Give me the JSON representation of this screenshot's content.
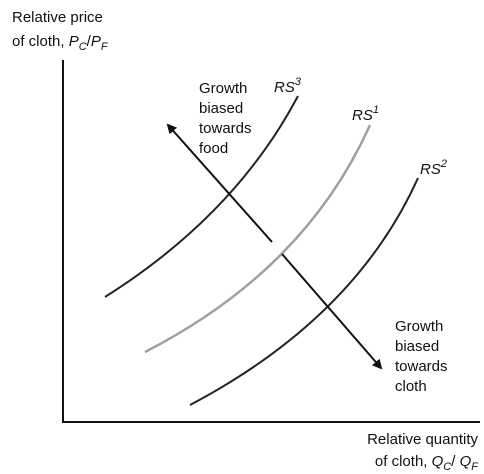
{
  "y_axis_label": {
    "line1": "Relative price",
    "line2": "of cloth, ",
    "var1": "P",
    "sub1": "C",
    "slash": "/",
    "var2": "P",
    "sub2": "F"
  },
  "x_axis_label": {
    "line1": "Relative quantity",
    "line2": "of cloth, ",
    "var1": "Q",
    "sub1": "C",
    "slash": "/ ",
    "var2": "Q",
    "sub2": "F"
  },
  "curves": [
    {
      "name": "RS",
      "superscript": "3"
    },
    {
      "name": "RS",
      "superscript": "1"
    },
    {
      "name": "RS",
      "superscript": "2"
    }
  ],
  "annotations": [
    {
      "lines": [
        "Growth",
        "biased",
        "towards",
        "food"
      ]
    },
    {
      "lines": [
        "Growth",
        "biased",
        "towards",
        "cloth"
      ]
    }
  ]
}
